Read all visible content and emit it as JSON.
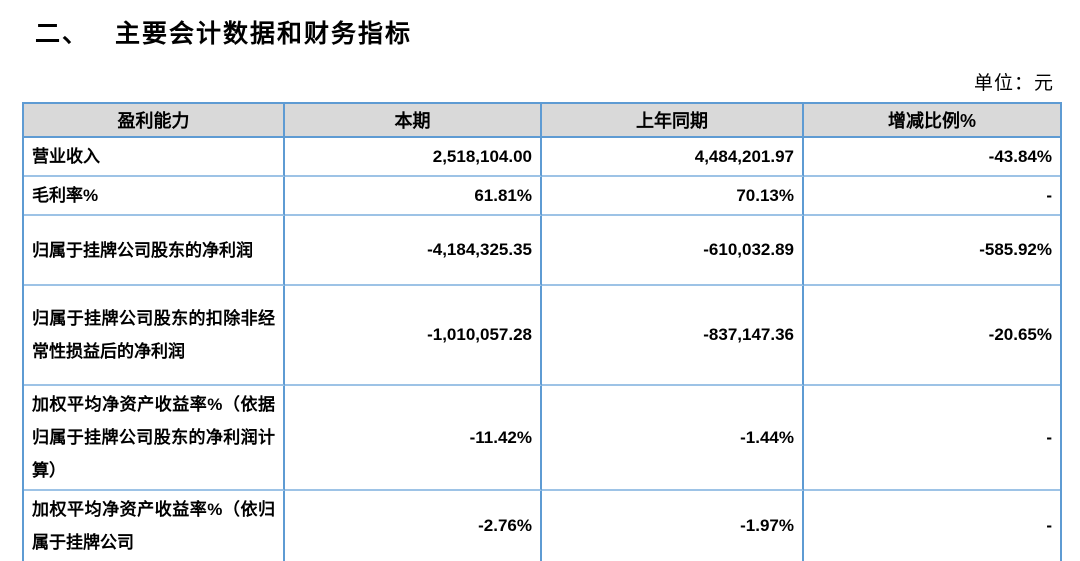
{
  "section": {
    "number": "二、",
    "heading": "主要会计数据和财务指标"
  },
  "unit_note": "单位：元",
  "table": {
    "columns": [
      "盈利能力",
      "本期",
      "上年同期",
      "增减比例%"
    ],
    "rows": [
      {
        "label": "营业收入",
        "current": "2,518,104.00",
        "prior": "4,484,201.97",
        "change": "-43.84%"
      },
      {
        "label": "毛利率%",
        "current": "61.81%",
        "prior": "70.13%",
        "change": "-"
      },
      {
        "label": "归属于挂牌公司股东的净利润",
        "current": "-4,184,325.35",
        "prior": "-610,032.89",
        "change": "-585.92%"
      },
      {
        "label": "归属于挂牌公司股东的扣除非经常性损益后的净利润",
        "current": "-1,010,057.28",
        "prior": "-837,147.36",
        "change": "-20.65%"
      },
      {
        "label": "加权平均净资产收益率%（依据归属于挂牌公司股东的净利润计算）",
        "current": "-11.42%",
        "prior": "-1.44%",
        "change": "-"
      },
      {
        "label": "加权平均净资产收益率%（依归属于挂牌公司",
        "current": "-2.76%",
        "prior": "-1.97%",
        "change": "-"
      }
    ]
  },
  "colors": {
    "border_blue": "#5E9BD3",
    "border_blue_light": "#9DC3E6",
    "header_bg": "#D9D9D9",
    "text": "#000000"
  }
}
